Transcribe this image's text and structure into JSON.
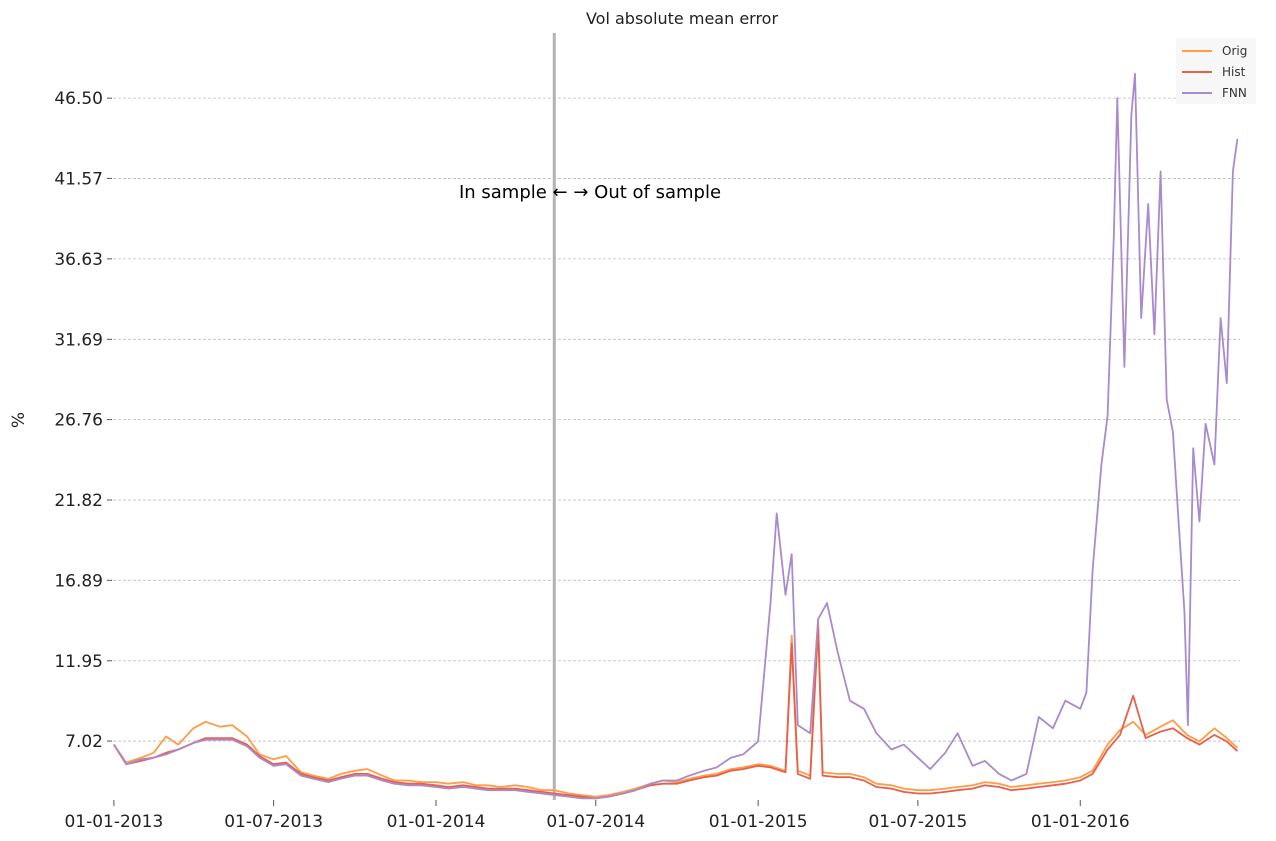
{
  "chart_data": {
    "type": "line",
    "title": "Vol absolute mean error",
    "ylabel": "%",
    "xlabel": "",
    "x_range": [
      "2012-12-31",
      "2016-06-30"
    ],
    "ylim": [
      3.4,
      50.5
    ],
    "y_ticks": [
      7.02,
      11.95,
      16.89,
      21.82,
      26.76,
      31.69,
      36.63,
      41.57,
      46.5
    ],
    "y_tick_labels": [
      "7.02",
      "11.95",
      "16.89",
      "21.82",
      "26.76",
      "31.69",
      "36.63",
      "41.57",
      "46.50"
    ],
    "x_ticks": [
      "2013-01-01",
      "2013-07-01",
      "2014-01-01",
      "2014-07-01",
      "2015-01-01",
      "2015-07-01",
      "2016-01-01"
    ],
    "x_tick_labels": [
      "01-01-2013",
      "01-07-2013",
      "01-01-2014",
      "01-07-2014",
      "01-01-2015",
      "01-07-2015",
      "01-01-2016"
    ],
    "grid": "horizontal-dashed",
    "legend_position": "top-right",
    "split_date": "2014-05-15",
    "annotation": "In sample ←  → Out of sample",
    "series": [
      {
        "name": "Orig",
        "color": "#ff9c45",
        "points": [
          [
            "2013-01-01",
            6.8
          ],
          [
            "2013-01-15",
            5.7
          ],
          [
            "2013-02-01",
            6.0
          ],
          [
            "2013-02-15",
            6.3
          ],
          [
            "2013-03-01",
            7.3
          ],
          [
            "2013-03-15",
            6.8
          ],
          [
            "2013-04-01",
            7.8
          ],
          [
            "2013-04-15",
            8.2
          ],
          [
            "2013-05-01",
            7.9
          ],
          [
            "2013-05-15",
            8.0
          ],
          [
            "2013-06-01",
            7.3
          ],
          [
            "2013-06-15",
            6.2
          ],
          [
            "2013-07-01",
            5.9
          ],
          [
            "2013-07-15",
            6.1
          ],
          [
            "2013-08-01",
            5.1
          ],
          [
            "2013-08-15",
            4.9
          ],
          [
            "2013-09-01",
            4.7
          ],
          [
            "2013-09-15",
            5.0
          ],
          [
            "2013-10-01",
            5.2
          ],
          [
            "2013-10-15",
            5.3
          ],
          [
            "2013-11-01",
            4.9
          ],
          [
            "2013-11-15",
            4.6
          ],
          [
            "2013-12-01",
            4.6
          ],
          [
            "2013-12-15",
            4.5
          ],
          [
            "2014-01-01",
            4.5
          ],
          [
            "2014-01-15",
            4.4
          ],
          [
            "2014-02-01",
            4.5
          ],
          [
            "2014-02-15",
            4.3
          ],
          [
            "2014-03-01",
            4.3
          ],
          [
            "2014-03-15",
            4.2
          ],
          [
            "2014-04-01",
            4.3
          ],
          [
            "2014-04-15",
            4.2
          ],
          [
            "2014-05-01",
            4.0
          ],
          [
            "2014-05-15",
            4.0
          ],
          [
            "2014-06-01",
            3.8
          ],
          [
            "2014-06-15",
            3.7
          ],
          [
            "2014-07-01",
            3.6
          ],
          [
            "2014-07-15",
            3.7
          ],
          [
            "2014-08-01",
            3.9
          ],
          [
            "2014-08-15",
            4.1
          ],
          [
            "2014-09-01",
            4.4
          ],
          [
            "2014-09-15",
            4.6
          ],
          [
            "2014-10-01",
            4.5
          ],
          [
            "2014-10-15",
            4.7
          ],
          [
            "2014-11-01",
            4.9
          ],
          [
            "2014-11-15",
            5.0
          ],
          [
            "2014-12-01",
            5.3
          ],
          [
            "2014-12-15",
            5.4
          ],
          [
            "2015-01-01",
            5.6
          ],
          [
            "2015-01-15",
            5.5
          ],
          [
            "2015-02-01",
            5.2
          ],
          [
            "2015-02-08",
            13.5
          ],
          [
            "2015-02-15",
            5.2
          ],
          [
            "2015-03-01",
            4.9
          ],
          [
            "2015-03-10",
            14.5
          ],
          [
            "2015-03-15",
            5.1
          ],
          [
            "2015-04-01",
            5.0
          ],
          [
            "2015-04-15",
            5.0
          ],
          [
            "2015-05-01",
            4.8
          ],
          [
            "2015-05-15",
            4.4
          ],
          [
            "2015-06-01",
            4.3
          ],
          [
            "2015-06-15",
            4.1
          ],
          [
            "2015-07-01",
            4.0
          ],
          [
            "2015-07-15",
            4.0
          ],
          [
            "2015-08-01",
            4.1
          ],
          [
            "2015-08-15",
            4.2
          ],
          [
            "2015-09-01",
            4.3
          ],
          [
            "2015-09-15",
            4.5
          ],
          [
            "2015-10-01",
            4.4
          ],
          [
            "2015-10-15",
            4.2
          ],
          [
            "2015-11-01",
            4.3
          ],
          [
            "2015-11-15",
            4.4
          ],
          [
            "2015-12-01",
            4.5
          ],
          [
            "2015-12-15",
            4.6
          ],
          [
            "2016-01-01",
            4.8
          ],
          [
            "2016-01-15",
            5.2
          ],
          [
            "2016-02-01",
            6.8
          ],
          [
            "2016-02-15",
            7.7
          ],
          [
            "2016-03-01",
            8.2
          ],
          [
            "2016-03-15",
            7.4
          ],
          [
            "2016-04-01",
            7.9
          ],
          [
            "2016-04-15",
            8.3
          ],
          [
            "2016-05-01",
            7.4
          ],
          [
            "2016-05-15",
            7.0
          ],
          [
            "2016-06-01",
            7.8
          ],
          [
            "2016-06-15",
            7.2
          ],
          [
            "2016-06-27",
            6.6
          ]
        ]
      },
      {
        "name": "Hist",
        "color": "#e8604a",
        "points": [
          [
            "2013-01-01",
            6.8
          ],
          [
            "2013-01-15",
            5.6
          ],
          [
            "2013-02-01",
            5.8
          ],
          [
            "2013-02-15",
            6.0
          ],
          [
            "2013-03-01",
            6.3
          ],
          [
            "2013-03-15",
            6.5
          ],
          [
            "2013-04-01",
            6.9
          ],
          [
            "2013-04-15",
            7.2
          ],
          [
            "2013-05-01",
            7.2
          ],
          [
            "2013-05-15",
            7.2
          ],
          [
            "2013-06-01",
            6.8
          ],
          [
            "2013-06-15",
            6.1
          ],
          [
            "2013-07-01",
            5.6
          ],
          [
            "2013-07-15",
            5.7
          ],
          [
            "2013-08-01",
            5.0
          ],
          [
            "2013-08-15",
            4.8
          ],
          [
            "2013-09-01",
            4.6
          ],
          [
            "2013-09-15",
            4.8
          ],
          [
            "2013-10-01",
            5.0
          ],
          [
            "2013-10-15",
            5.0
          ],
          [
            "2013-11-01",
            4.7
          ],
          [
            "2013-11-15",
            4.5
          ],
          [
            "2013-12-01",
            4.4
          ],
          [
            "2013-12-15",
            4.4
          ],
          [
            "2014-01-01",
            4.3
          ],
          [
            "2014-01-15",
            4.2
          ],
          [
            "2014-02-01",
            4.3
          ],
          [
            "2014-02-15",
            4.2
          ],
          [
            "2014-03-01",
            4.1
          ],
          [
            "2014-03-15",
            4.1
          ],
          [
            "2014-04-01",
            4.1
          ],
          [
            "2014-04-15",
            4.0
          ],
          [
            "2014-05-01",
            3.9
          ],
          [
            "2014-05-15",
            3.8
          ],
          [
            "2014-06-01",
            3.7
          ],
          [
            "2014-06-15",
            3.6
          ],
          [
            "2014-07-01",
            3.5
          ],
          [
            "2014-07-15",
            3.6
          ],
          [
            "2014-08-01",
            3.8
          ],
          [
            "2014-08-15",
            4.0
          ],
          [
            "2014-09-01",
            4.3
          ],
          [
            "2014-09-15",
            4.4
          ],
          [
            "2014-10-01",
            4.4
          ],
          [
            "2014-10-15",
            4.6
          ],
          [
            "2014-11-01",
            4.8
          ],
          [
            "2014-11-15",
            4.9
          ],
          [
            "2014-12-01",
            5.2
          ],
          [
            "2014-12-15",
            5.3
          ],
          [
            "2015-01-01",
            5.5
          ],
          [
            "2015-01-15",
            5.4
          ],
          [
            "2015-02-01",
            5.1
          ],
          [
            "2015-02-08",
            13.0
          ],
          [
            "2015-02-15",
            5.0
          ],
          [
            "2015-03-01",
            4.7
          ],
          [
            "2015-03-10",
            14.0
          ],
          [
            "2015-03-15",
            4.9
          ],
          [
            "2015-04-01",
            4.8
          ],
          [
            "2015-04-15",
            4.8
          ],
          [
            "2015-05-01",
            4.6
          ],
          [
            "2015-05-15",
            4.2
          ],
          [
            "2015-06-01",
            4.1
          ],
          [
            "2015-06-15",
            3.9
          ],
          [
            "2015-07-01",
            3.8
          ],
          [
            "2015-07-15",
            3.8
          ],
          [
            "2015-08-01",
            3.9
          ],
          [
            "2015-08-15",
            4.0
          ],
          [
            "2015-09-01",
            4.1
          ],
          [
            "2015-09-15",
            4.3
          ],
          [
            "2015-10-01",
            4.2
          ],
          [
            "2015-10-15",
            4.0
          ],
          [
            "2015-11-01",
            4.1
          ],
          [
            "2015-11-15",
            4.2
          ],
          [
            "2015-12-01",
            4.3
          ],
          [
            "2015-12-15",
            4.4
          ],
          [
            "2016-01-01",
            4.6
          ],
          [
            "2016-01-15",
            5.0
          ],
          [
            "2016-02-01",
            6.5
          ],
          [
            "2016-02-15",
            7.4
          ],
          [
            "2016-03-01",
            9.8
          ],
          [
            "2016-03-15",
            7.2
          ],
          [
            "2016-04-01",
            7.6
          ],
          [
            "2016-04-15",
            7.8
          ],
          [
            "2016-05-01",
            7.2
          ],
          [
            "2016-05-15",
            6.8
          ],
          [
            "2016-06-01",
            7.4
          ],
          [
            "2016-06-15",
            7.0
          ],
          [
            "2016-06-27",
            6.4
          ]
        ]
      },
      {
        "name": "FNN",
        "color": "#a98acc",
        "points": [
          [
            "2013-01-01",
            6.8
          ],
          [
            "2013-01-15",
            5.6
          ],
          [
            "2013-02-01",
            5.9
          ],
          [
            "2013-02-15",
            6.0
          ],
          [
            "2013-03-01",
            6.2
          ],
          [
            "2013-03-15",
            6.5
          ],
          [
            "2013-04-01",
            6.9
          ],
          [
            "2013-04-15",
            7.1
          ],
          [
            "2013-05-01",
            7.1
          ],
          [
            "2013-05-15",
            7.1
          ],
          [
            "2013-06-01",
            6.7
          ],
          [
            "2013-06-15",
            6.0
          ],
          [
            "2013-07-01",
            5.5
          ],
          [
            "2013-07-15",
            5.6
          ],
          [
            "2013-08-01",
            4.9
          ],
          [
            "2013-08-15",
            4.7
          ],
          [
            "2013-09-01",
            4.5
          ],
          [
            "2013-09-15",
            4.7
          ],
          [
            "2013-10-01",
            4.9
          ],
          [
            "2013-10-15",
            4.9
          ],
          [
            "2013-11-01",
            4.6
          ],
          [
            "2013-11-15",
            4.4
          ],
          [
            "2013-12-01",
            4.3
          ],
          [
            "2013-12-15",
            4.3
          ],
          [
            "2014-01-01",
            4.2
          ],
          [
            "2014-01-15",
            4.1
          ],
          [
            "2014-02-01",
            4.2
          ],
          [
            "2014-02-15",
            4.1
          ],
          [
            "2014-03-01",
            4.0
          ],
          [
            "2014-03-15",
            4.0
          ],
          [
            "2014-04-01",
            4.0
          ],
          [
            "2014-04-15",
            3.9
          ],
          [
            "2014-05-01",
            3.8
          ],
          [
            "2014-05-15",
            3.7
          ],
          [
            "2014-06-01",
            3.6
          ],
          [
            "2014-06-15",
            3.5
          ],
          [
            "2014-07-01",
            3.5
          ],
          [
            "2014-07-15",
            3.6
          ],
          [
            "2014-08-01",
            3.8
          ],
          [
            "2014-08-15",
            4.0
          ],
          [
            "2014-09-01",
            4.4
          ],
          [
            "2014-09-15",
            4.6
          ],
          [
            "2014-10-01",
            4.6
          ],
          [
            "2014-10-15",
            4.9
          ],
          [
            "2014-11-01",
            5.2
          ],
          [
            "2014-11-15",
            5.4
          ],
          [
            "2014-12-01",
            6.0
          ],
          [
            "2014-12-15",
            6.2
          ],
          [
            "2015-01-01",
            7.0
          ],
          [
            "2015-01-15",
            15.5
          ],
          [
            "2015-01-22",
            21.0
          ],
          [
            "2015-02-01",
            16.0
          ],
          [
            "2015-02-08",
            18.5
          ],
          [
            "2015-02-15",
            8.0
          ],
          [
            "2015-03-01",
            7.5
          ],
          [
            "2015-03-10",
            14.5
          ],
          [
            "2015-03-20",
            15.5
          ],
          [
            "2015-04-01",
            12.5
          ],
          [
            "2015-04-15",
            9.5
          ],
          [
            "2015-05-01",
            9.0
          ],
          [
            "2015-05-15",
            7.5
          ],
          [
            "2015-06-01",
            6.5
          ],
          [
            "2015-06-15",
            6.8
          ],
          [
            "2015-07-01",
            6.0
          ],
          [
            "2015-07-15",
            5.3
          ],
          [
            "2015-08-01",
            6.3
          ],
          [
            "2015-08-15",
            7.5
          ],
          [
            "2015-09-01",
            5.5
          ],
          [
            "2015-09-15",
            5.8
          ],
          [
            "2015-10-01",
            5.0
          ],
          [
            "2015-10-15",
            4.6
          ],
          [
            "2015-11-01",
            5.0
          ],
          [
            "2015-11-15",
            8.5
          ],
          [
            "2015-12-01",
            7.8
          ],
          [
            "2015-12-15",
            9.5
          ],
          [
            "2016-01-01",
            9.0
          ],
          [
            "2016-01-08",
            10.0
          ],
          [
            "2016-01-15",
            17.5
          ],
          [
            "2016-01-25",
            24.0
          ],
          [
            "2016-02-01",
            27.0
          ],
          [
            "2016-02-08",
            38.0
          ],
          [
            "2016-02-12",
            46.5
          ],
          [
            "2016-02-20",
            30.0
          ],
          [
            "2016-02-28",
            45.5
          ],
          [
            "2016-03-03",
            48.0
          ],
          [
            "2016-03-10",
            33.0
          ],
          [
            "2016-03-18",
            40.0
          ],
          [
            "2016-03-25",
            32.0
          ],
          [
            "2016-04-01",
            42.0
          ],
          [
            "2016-04-08",
            28.0
          ],
          [
            "2016-04-15",
            26.0
          ],
          [
            "2016-04-22",
            20.0
          ],
          [
            "2016-04-28",
            15.0
          ],
          [
            "2016-05-02",
            8.0
          ],
          [
            "2016-05-08",
            25.0
          ],
          [
            "2016-05-15",
            20.5
          ],
          [
            "2016-05-22",
            26.5
          ],
          [
            "2016-06-01",
            24.0
          ],
          [
            "2016-06-08",
            33.0
          ],
          [
            "2016-06-15",
            29.0
          ],
          [
            "2016-06-22",
            42.0
          ],
          [
            "2016-06-27",
            44.0
          ]
        ]
      }
    ]
  }
}
